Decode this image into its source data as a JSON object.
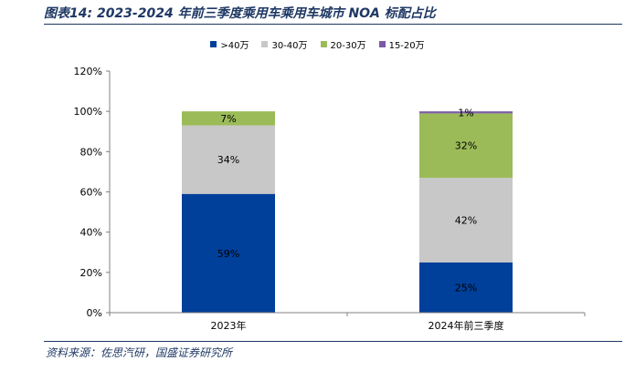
{
  "title": "图表14:  2023-2024 年前三季度乘用车乘用车城市 NOA 标配占比",
  "source": "资料来源：佐思汽研，国盛证券研究所",
  "chart_data": {
    "type": "bar",
    "stacked": true,
    "categories": [
      "2023年",
      "2024年前三季度"
    ],
    "series": [
      {
        "name": ">40万",
        "color": "#003f9a",
        "values": [
          59,
          25
        ],
        "labels": [
          "59%",
          "25%"
        ]
      },
      {
        "name": "30-40万",
        "color": "#c8c8c8",
        "values": [
          34,
          42
        ],
        "labels": [
          "34%",
          "42%"
        ]
      },
      {
        "name": "20-30万",
        "color": "#9bbb59",
        "values": [
          7,
          32
        ],
        "labels": [
          "7%",
          "32%"
        ]
      },
      {
        "name": "15-20万",
        "color": "#7b5aa6",
        "values": [
          0,
          1
        ],
        "labels": [
          "",
          "1%"
        ]
      }
    ],
    "ylim": [
      0,
      120
    ],
    "yticks": [
      0,
      20,
      40,
      60,
      80,
      100,
      120
    ],
    "ytick_labels": [
      "0%",
      "20%",
      "40%",
      "60%",
      "80%",
      "100%",
      "120%"
    ],
    "xlabel": "",
    "ylabel": "",
    "legend_position": "top"
  }
}
